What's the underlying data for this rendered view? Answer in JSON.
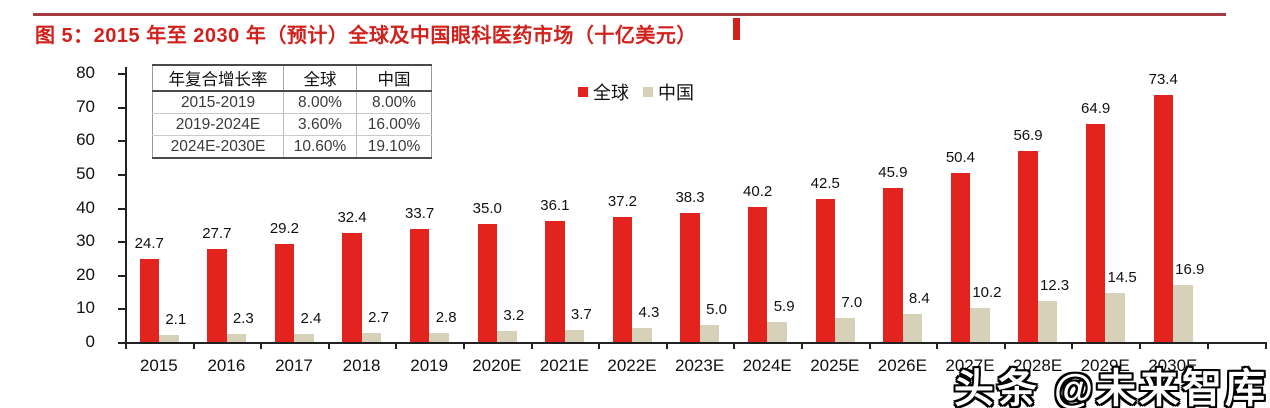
{
  "title": "图 5：2015 年至 2030 年（预计）全球及中国眼科医药市场（十亿美元）",
  "watermark": "头条 @未来智库",
  "colors": {
    "title_red": "#d0211c",
    "top_rule_red": "#a53a3f",
    "global_bar": "#e2231e",
    "china_bar": "#d8d1ba",
    "axis": "#222222"
  },
  "cagr_table": {
    "headers": [
      "年复合增长率",
      "全球",
      "中国"
    ],
    "rows": [
      [
        "2015-2019",
        "8.00%",
        "8.00%"
      ],
      [
        "2019-2024E",
        "3.60%",
        "16.00%"
      ],
      [
        "2024E-2030E",
        "10.60%",
        "19.10%"
      ]
    ]
  },
  "chart_data": {
    "type": "bar",
    "title": "",
    "xlabel": "",
    "ylabel": "",
    "categories": [
      "2015",
      "2016",
      "2017",
      "2018",
      "2019",
      "2020E",
      "2021E",
      "2022E",
      "2023E",
      "2024E",
      "2025E",
      "2026E",
      "2027E",
      "2028E",
      "2029E",
      "2030E"
    ],
    "series": [
      {
        "name": "全球",
        "color": "#e2231e",
        "values": [
          24.7,
          27.7,
          29.2,
          32.4,
          33.7,
          35.0,
          36.1,
          37.2,
          38.3,
          40.2,
          42.5,
          45.9,
          50.4,
          56.9,
          64.9,
          73.4
        ]
      },
      {
        "name": "中国",
        "color": "#d8d1ba",
        "values": [
          2.1,
          2.3,
          2.4,
          2.7,
          2.8,
          3.2,
          3.7,
          4.3,
          5.0,
          5.9,
          7.0,
          8.4,
          10.2,
          12.3,
          14.5,
          16.9
        ]
      }
    ],
    "ylim": [
      0,
      80
    ],
    "yticks": [
      0,
      10,
      20,
      30,
      40,
      50,
      60,
      70,
      80
    ],
    "grid": false,
    "legend_position": "top-center",
    "value_labels": true
  }
}
